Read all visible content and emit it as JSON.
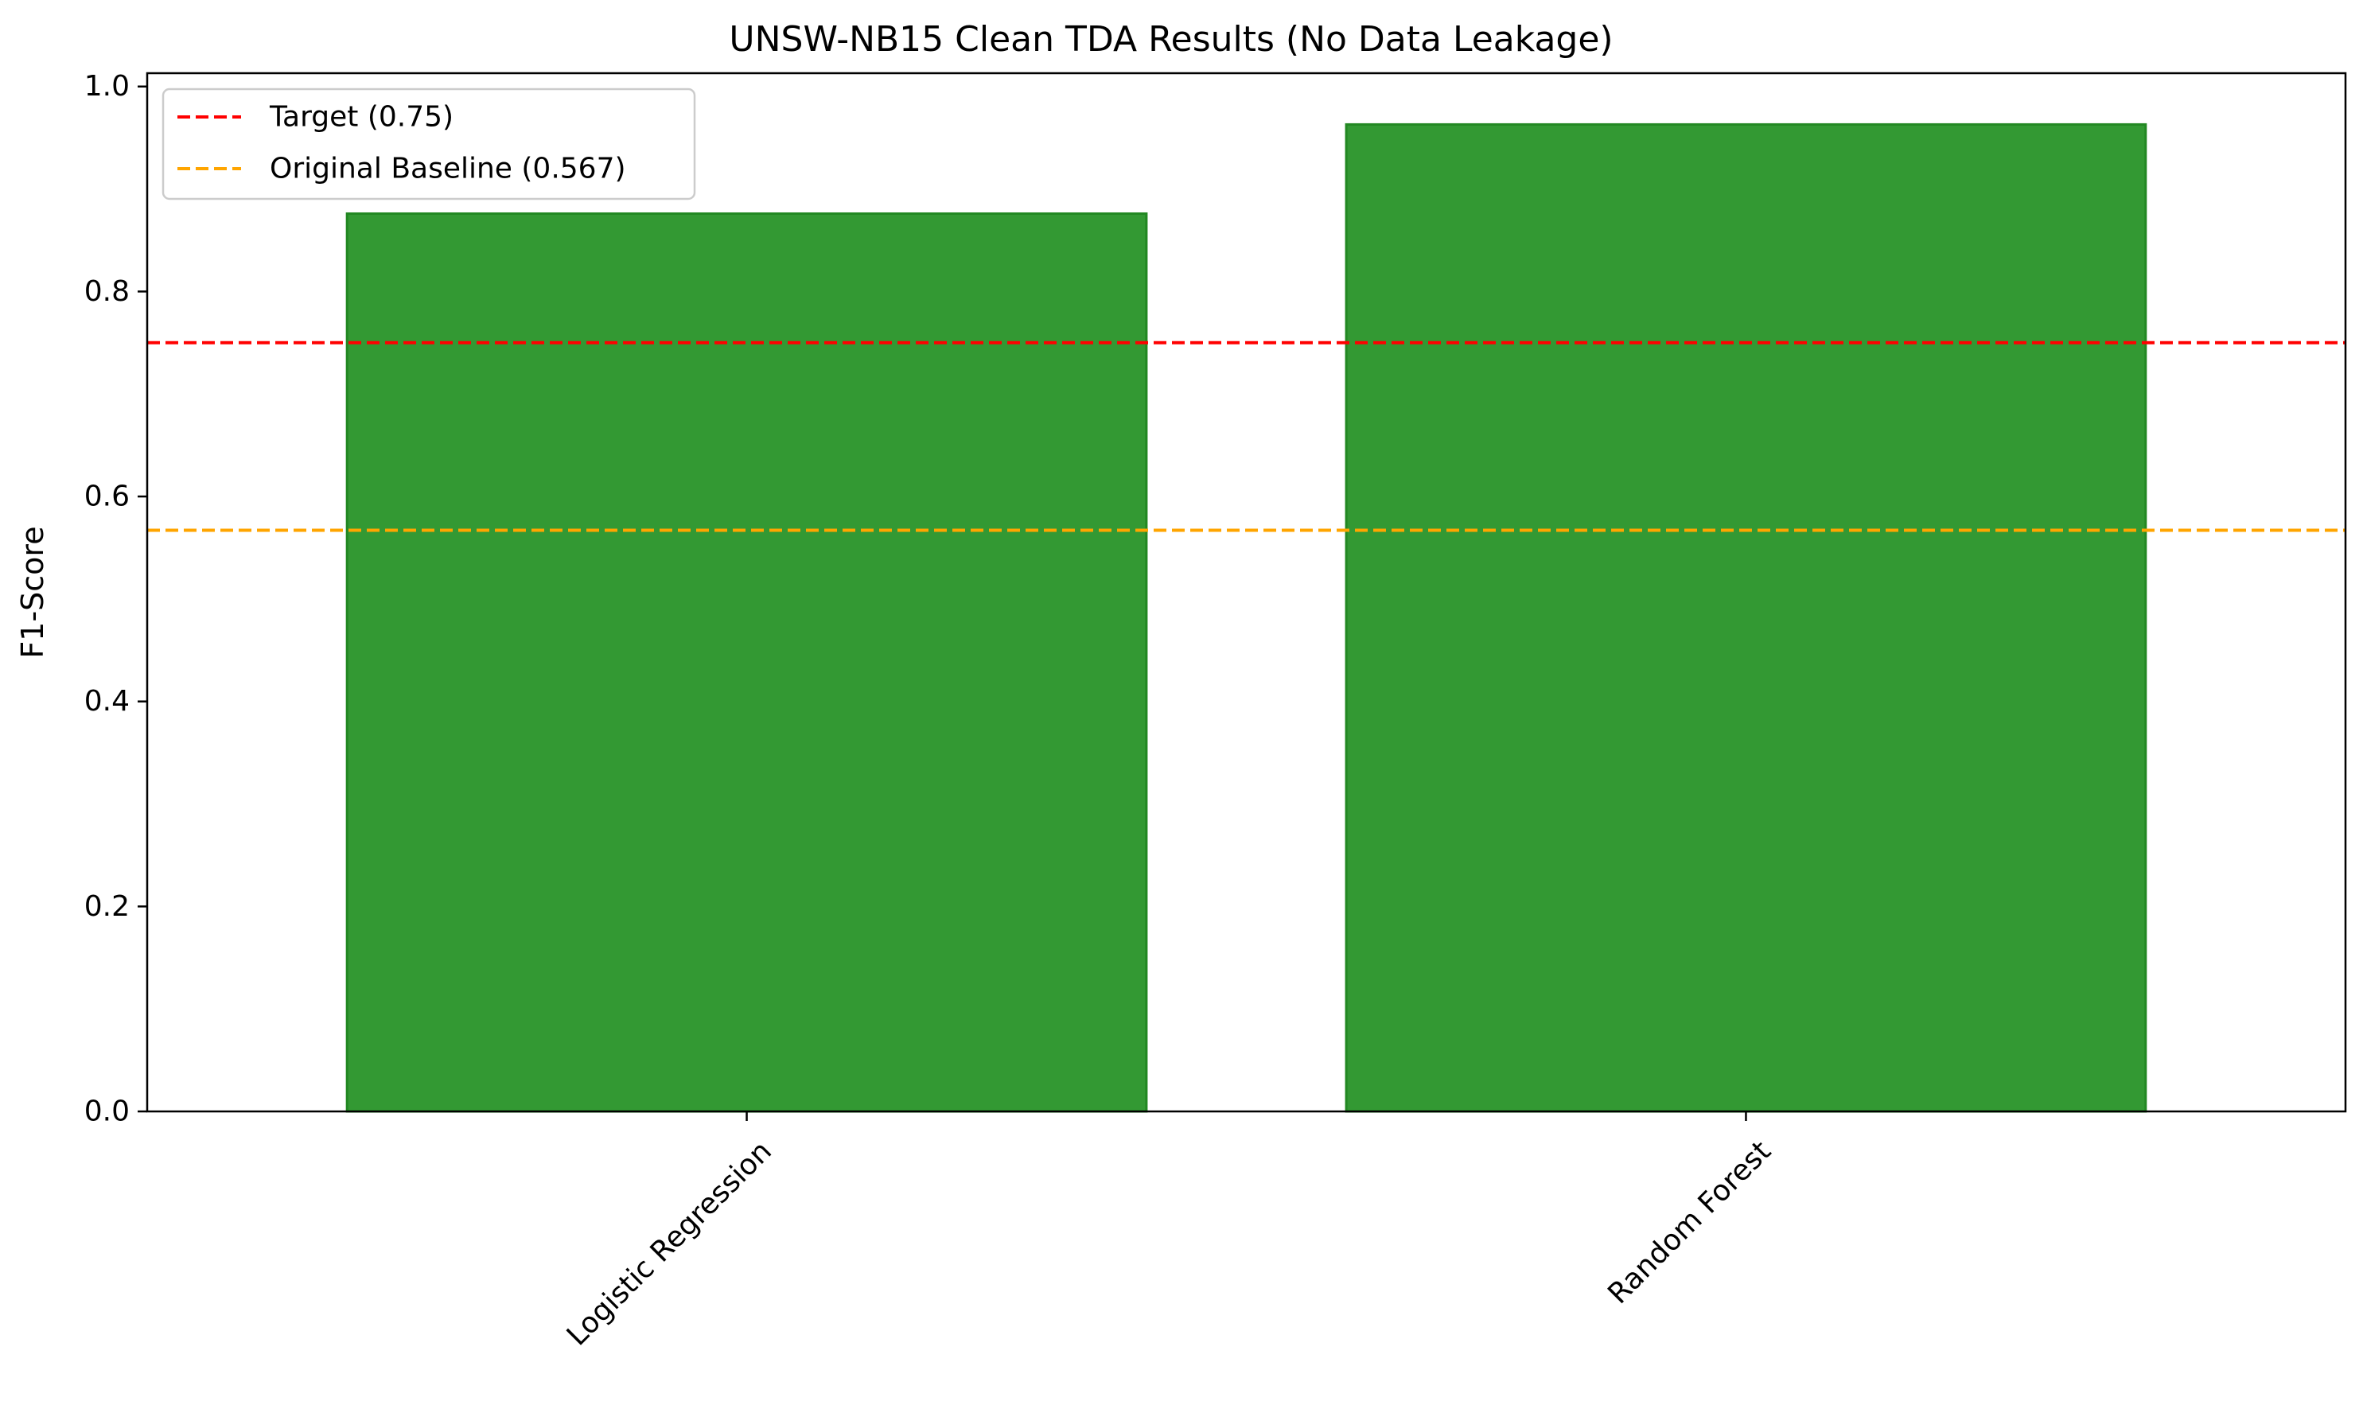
{
  "chart_data": {
    "type": "bar",
    "title": "UNSW-NB15 Clean TDA Results (No Data Leakage)",
    "xlabel": "",
    "ylabel": "F1-Score",
    "categories": [
      "Logistic Regression",
      "Random Forest"
    ],
    "values": [
      0.876,
      0.963
    ],
    "ylim": [
      0.0,
      1.013
    ],
    "yticks": [
      "0.0",
      "0.2",
      "0.4",
      "0.6",
      "0.8",
      "1.0"
    ],
    "bar_color": "#339933",
    "bar_edge_color": "#228822",
    "reference_lines": [
      {
        "label": "Target (0.75)",
        "value": 0.75,
        "color": "#ff0000",
        "style": "dashed"
      },
      {
        "label": "Original Baseline (0.567)",
        "value": 0.567,
        "color": "#ffa500",
        "style": "dashed"
      }
    ],
    "legend_position": "top-left",
    "grid": false
  }
}
